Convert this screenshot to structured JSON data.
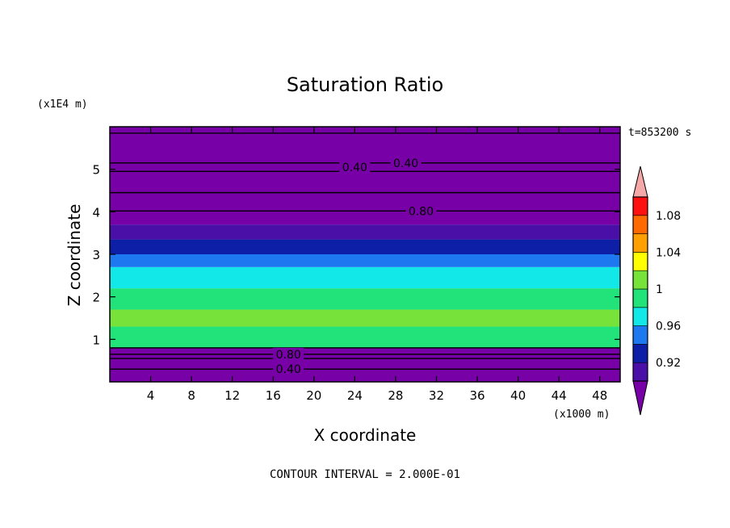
{
  "chart_data": {
    "type": "heatmap",
    "title": "Saturation Ratio",
    "xlabel": "X coordinate",
    "ylabel": "Z coordinate",
    "x_unit": "(x1000 m)",
    "y_unit": "(x1E4 m)",
    "time_label": "t=853200 s",
    "footer": "CONTOUR INTERVAL = 2.000E-01",
    "xlim": [
      0,
      50
    ],
    "ylim": [
      0,
      6
    ],
    "x_ticks": [
      {
        "value": 4,
        "label": "4"
      },
      {
        "value": 8,
        "label": "8"
      },
      {
        "value": 12,
        "label": "12"
      },
      {
        "value": 16,
        "label": "16"
      },
      {
        "value": 20,
        "label": "20"
      },
      {
        "value": 24,
        "label": "24"
      },
      {
        "value": 28,
        "label": "28"
      },
      {
        "value": 32,
        "label": "32"
      },
      {
        "value": 36,
        "label": "36"
      },
      {
        "value": 40,
        "label": "40"
      },
      {
        "value": 44,
        "label": "44"
      },
      {
        "value": 48,
        "label": "48"
      }
    ],
    "y_ticks": [
      {
        "value": 1,
        "label": "1"
      },
      {
        "value": 2,
        "label": "2"
      },
      {
        "value": 3,
        "label": "3"
      },
      {
        "value": 4,
        "label": "4"
      },
      {
        "value": 5,
        "label": "5"
      }
    ],
    "contour_labels": [
      {
        "x": 24,
        "y": 5.05,
        "text": "0.40"
      },
      {
        "x": 29,
        "y": 5.15,
        "text": "0.40"
      },
      {
        "x": 30.5,
        "y": 4.02,
        "text": "0.80"
      },
      {
        "x": 17.5,
        "y": 0.65,
        "text": "0.80"
      },
      {
        "x": 17.5,
        "y": 0.3,
        "text": "0.40"
      }
    ],
    "contour_lines_y": [
      0.3,
      0.55,
      0.65,
      0.8,
      4.02,
      4.45,
      4.95,
      5.15,
      5.85
    ],
    "bands": [
      {
        "from": 0.0,
        "to": 0.8,
        "color": "#7700a6"
      },
      {
        "from": 0.8,
        "to": 1.3,
        "color": "#22e27a"
      },
      {
        "from": 1.3,
        "to": 1.7,
        "color": "#77e23a"
      },
      {
        "from": 1.7,
        "to": 2.2,
        "color": "#22e27a"
      },
      {
        "from": 2.2,
        "to": 2.7,
        "color": "#13e8e8"
      },
      {
        "from": 2.7,
        "to": 3.0,
        "color": "#1e78f0"
      },
      {
        "from": 3.0,
        "to": 3.35,
        "color": "#0d1fa6"
      },
      {
        "from": 3.35,
        "to": 3.7,
        "color": "#4a0fa6"
      },
      {
        "from": 3.7,
        "to": 6.0,
        "color": "#7700a6"
      }
    ],
    "colorbar": {
      "levels": [
        0.9,
        0.92,
        0.94,
        0.96,
        0.98,
        1.0,
        1.02,
        1.04,
        1.06,
        1.08,
        1.1
      ],
      "colors": [
        "#4a0fa6",
        "#0d1fa6",
        "#1e78f0",
        "#13e8e8",
        "#22e27a",
        "#77e23a",
        "#ffff00",
        "#ffa000",
        "#ff6a00",
        "#ff1010"
      ],
      "under_color": "#7700a6",
      "over_color": "#f4a8a8",
      "tick_labels": [
        {
          "value": 0.92,
          "label": "0.92"
        },
        {
          "value": 0.96,
          "label": "0.96"
        },
        {
          "value": 1.0,
          "label": "1"
        },
        {
          "value": 1.04,
          "label": "1.04"
        },
        {
          "value": 1.08,
          "label": "1.08"
        }
      ]
    }
  }
}
